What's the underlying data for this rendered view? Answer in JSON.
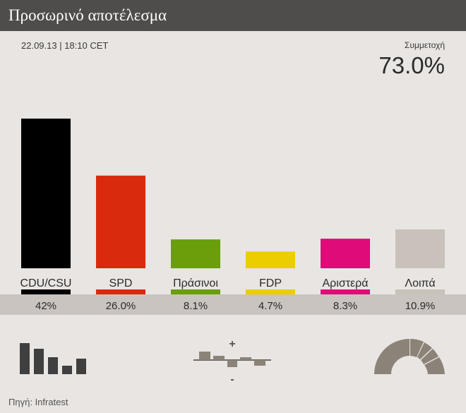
{
  "header": {
    "title": "Προσωρινό αποτέλεσμα"
  },
  "timestamp": "22.09.13 | 18:10 CET",
  "turnout": {
    "label": "Συμμετοχή",
    "value": "73.0%"
  },
  "source": "Πηγή: Infratest",
  "icons": [
    "bar-chart-icon",
    "gains-losses-icon",
    "seat-distribution-icon"
  ],
  "chart_data": {
    "type": "bar",
    "categories": [
      "CDU/CSU",
      "SPD",
      "Πράσινοι",
      "FDP",
      "Αριστερά",
      "Λοιπά"
    ],
    "values": [
      42,
      26.0,
      8.1,
      4.7,
      8.3,
      10.9
    ],
    "value_labels": [
      "42%",
      "26.0%",
      "8.1%",
      "4.7%",
      "8.3%",
      "10.9%"
    ],
    "colors": [
      "#000000",
      "#d92a0e",
      "#6a9e0a",
      "#eccd00",
      "#de0b78",
      "#c8c2bb"
    ],
    "ylim": [
      0,
      42
    ]
  }
}
